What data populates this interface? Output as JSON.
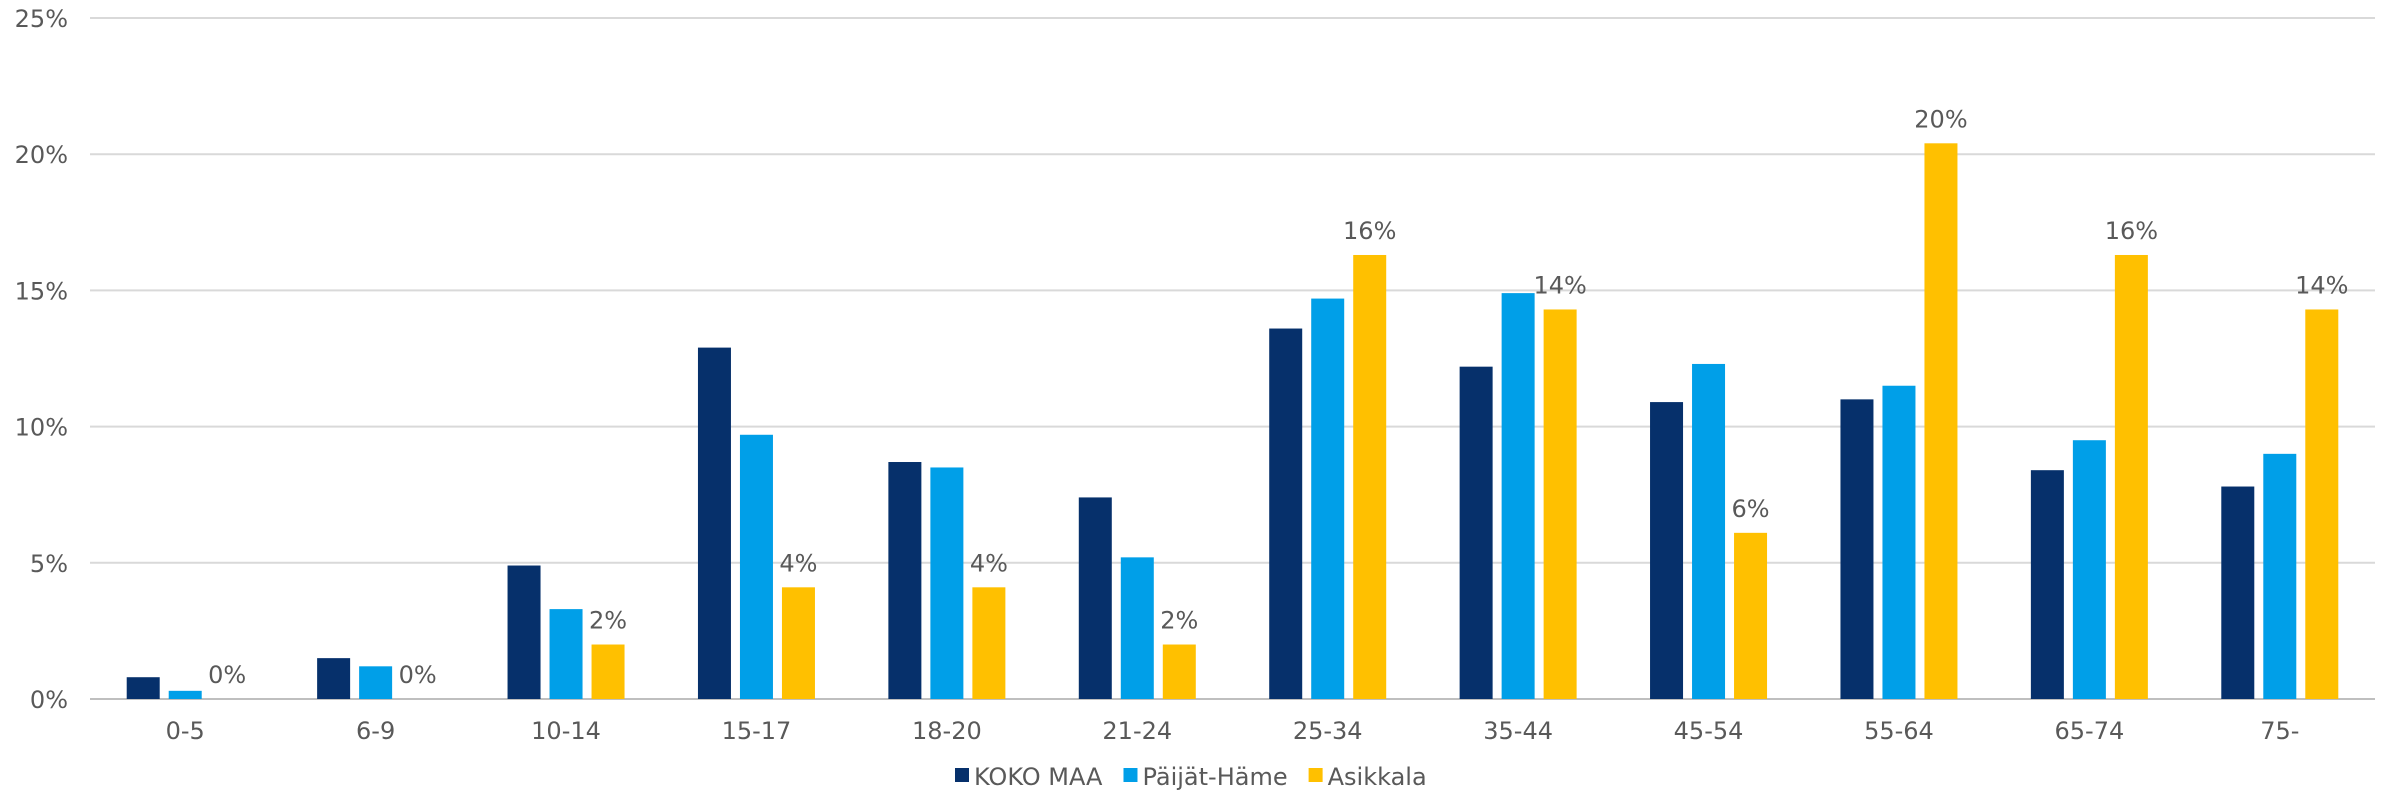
{
  "chart_data": {
    "type": "bar",
    "title": "",
    "xlabel": "",
    "ylabel": "",
    "ylim": [
      0,
      25
    ],
    "yticks": [
      {
        "value": 0,
        "label": "0%"
      },
      {
        "value": 5,
        "label": "5%"
      },
      {
        "value": 10,
        "label": "10%"
      },
      {
        "value": 15,
        "label": "15%"
      },
      {
        "value": 20,
        "label": "20%"
      },
      {
        "value": 25,
        "label": "25%"
      }
    ],
    "grid": true,
    "legend_position": "bottom",
    "categories": [
      "0-5",
      "6-9",
      "10-14",
      "15-17",
      "18-20",
      "21-24",
      "25-34",
      "35-44",
      "45-54",
      "55-64",
      "65-74",
      "75-"
    ],
    "series": [
      {
        "name": "KOKO MAA",
        "color": "#06306B",
        "values": [
          0.8,
          1.5,
          4.9,
          12.9,
          8.7,
          7.4,
          13.6,
          12.2,
          10.9,
          11.0,
          8.4,
          7.8
        ]
      },
      {
        "name": "Päijät-Häme",
        "color": "#009FE8",
        "values": [
          0.3,
          1.2,
          3.3,
          9.7,
          8.5,
          5.2,
          14.7,
          14.9,
          12.3,
          11.5,
          9.5,
          9.0
        ]
      },
      {
        "name": "Asikkala",
        "color": "#FFC000",
        "values": [
          0,
          0,
          2.0,
          4.1,
          4.1,
          2.0,
          16.3,
          14.3,
          6.1,
          20.4,
          16.3,
          14.3
        ],
        "data_labels": [
          "0%",
          "0%",
          "2%",
          "4%",
          "4%",
          "2%",
          "16%",
          "14%",
          "6%",
          "20%",
          "16%",
          "14%"
        ]
      }
    ]
  }
}
